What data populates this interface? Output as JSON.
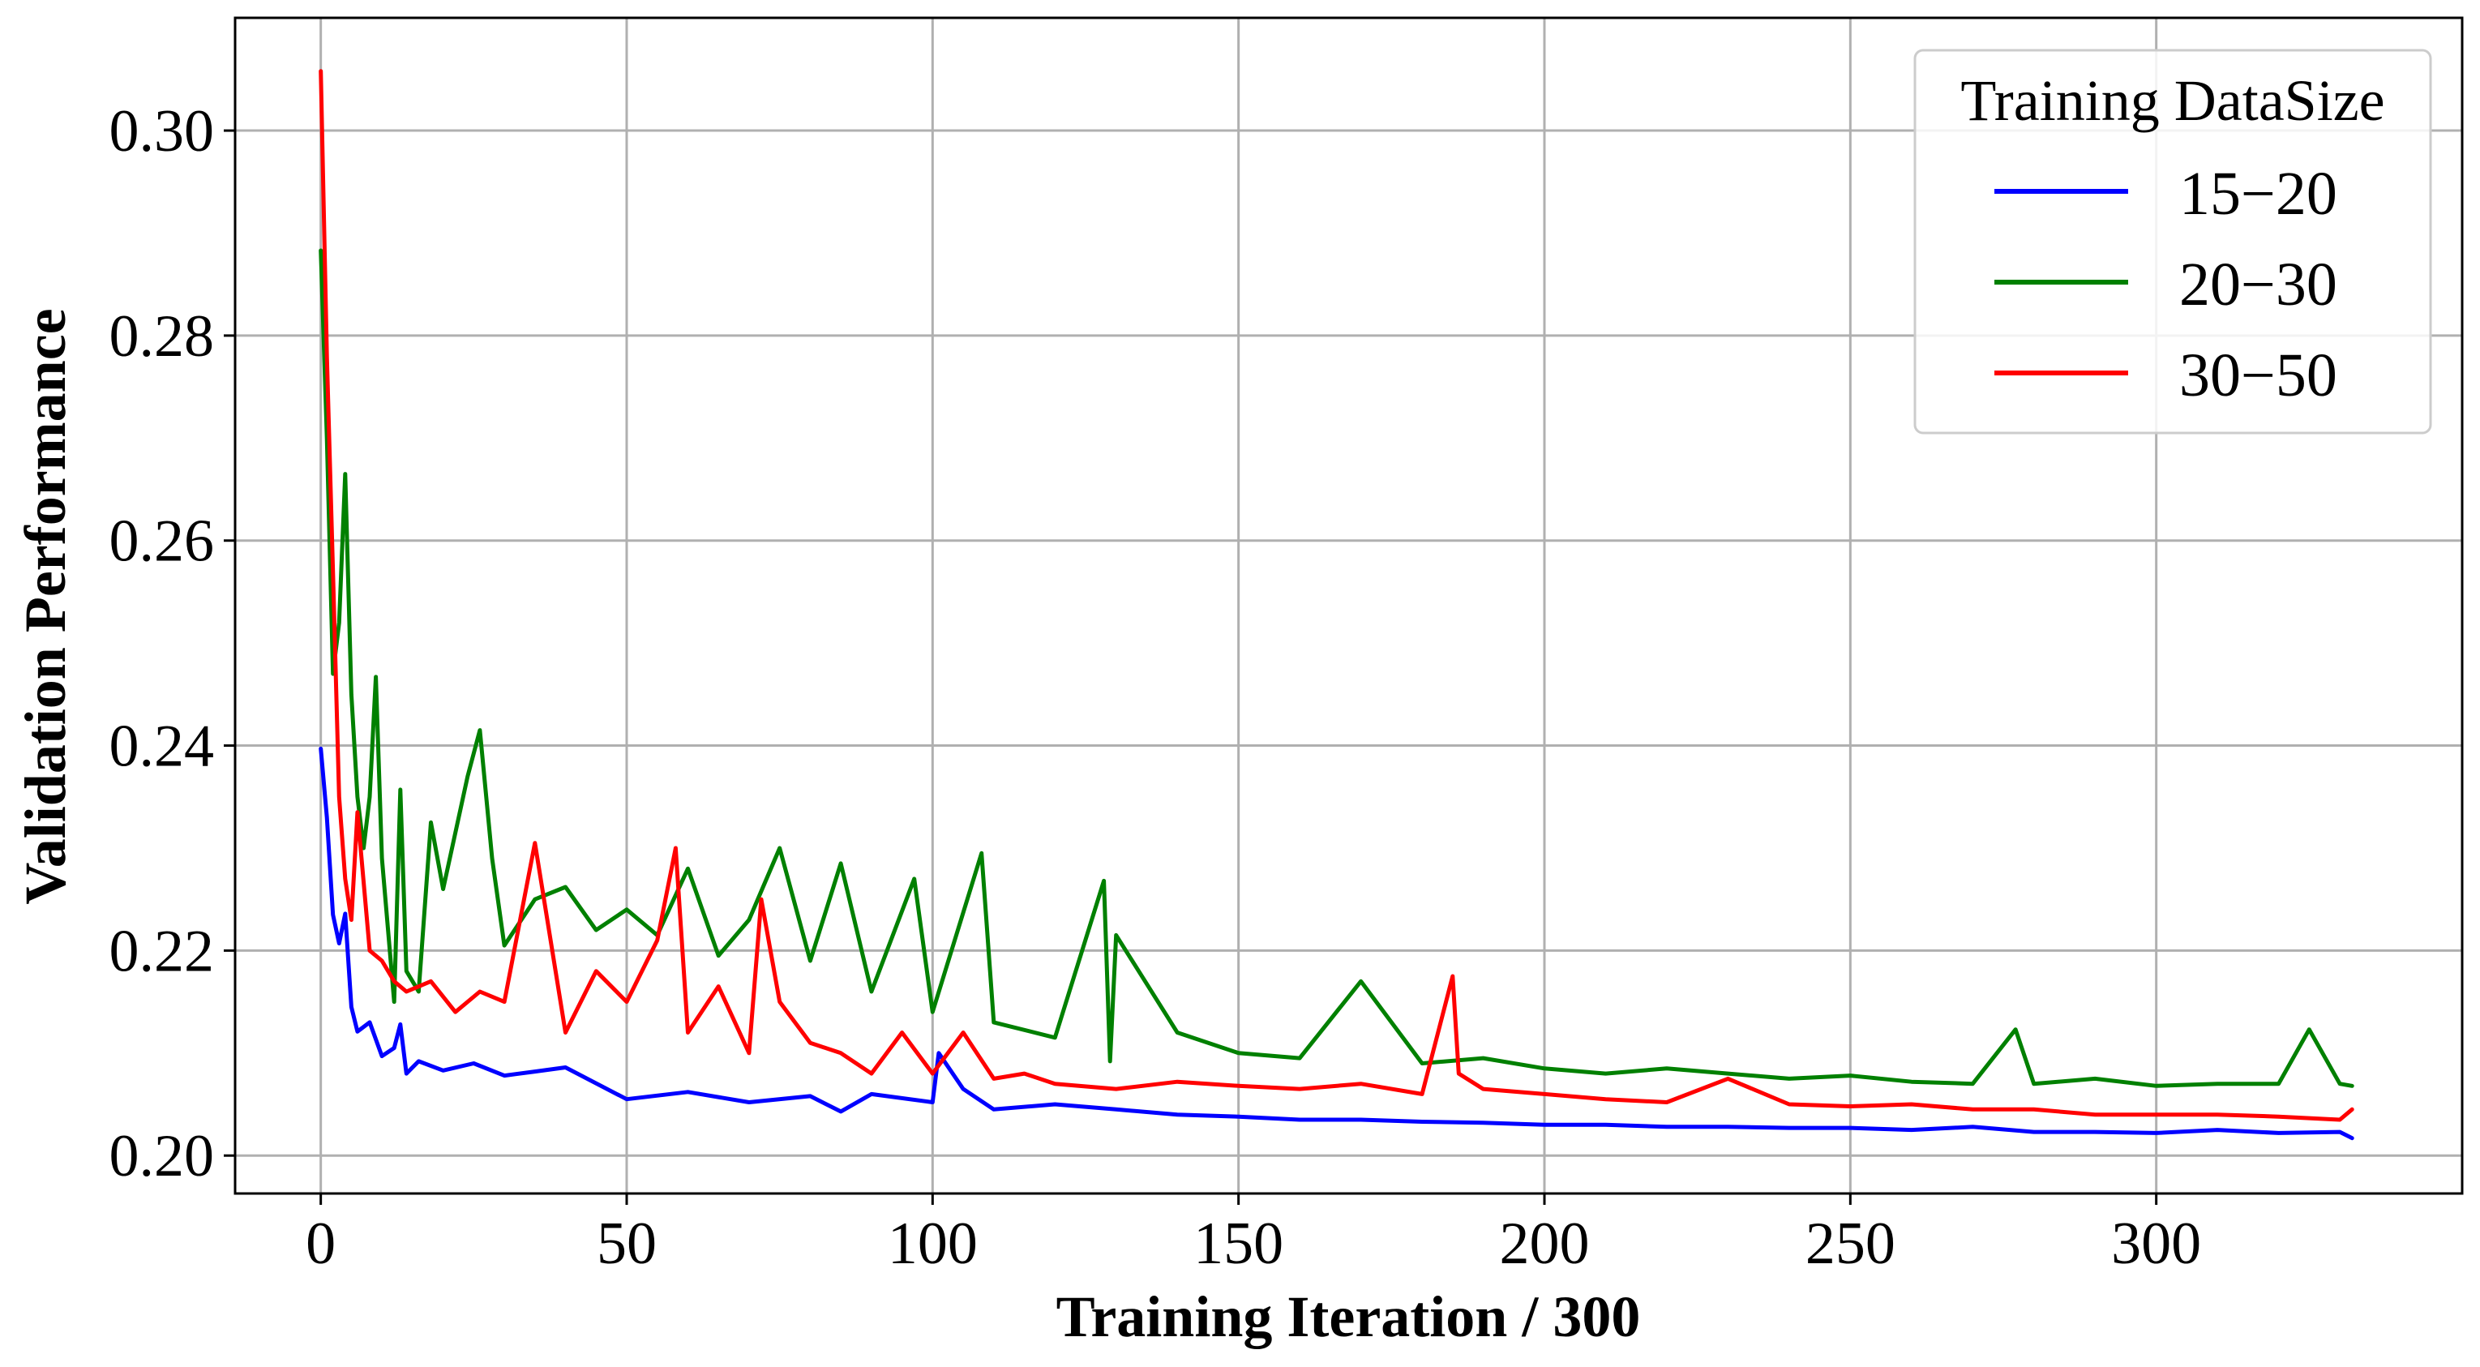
{
  "chart_data": {
    "type": "line",
    "title": "",
    "xlabel": "Training Iteration / 300",
    "ylabel": "Validation Performance",
    "xlim": [
      -14,
      350
    ],
    "ylim": [
      0.1963,
      0.311
    ],
    "xticks": [
      0,
      50,
      100,
      150,
      200,
      250,
      300
    ],
    "xtick_labels": [
      "0",
      "50",
      "100",
      "150",
      "200",
      "250",
      "300"
    ],
    "yticks": [
      0.2,
      0.22,
      0.24,
      0.26,
      0.28,
      0.3
    ],
    "ytick_labels": [
      "0.20",
      "0.22",
      "0.24",
      "0.26",
      "0.28",
      "0.30"
    ],
    "grid": true,
    "legend": {
      "title": "Training DataSize",
      "position": "top-right"
    },
    "series": [
      {
        "name": "15−20",
        "color": "#0000ff",
        "x": [
          0,
          1,
          2,
          3,
          4,
          5,
          6,
          8,
          10,
          12,
          13,
          14,
          16,
          20,
          25,
          30,
          35,
          40,
          50,
          60,
          70,
          80,
          85,
          90,
          100,
          101,
          105,
          110,
          120,
          130,
          140,
          150,
          160,
          170,
          180,
          190,
          200,
          210,
          220,
          230,
          240,
          250,
          260,
          270,
          280,
          290,
          300,
          310,
          320,
          330,
          332
        ],
        "y": [
          0.2397,
          0.233,
          0.2235,
          0.2207,
          0.2236,
          0.2145,
          0.2121,
          0.213,
          0.2097,
          0.2105,
          0.2128,
          0.208,
          0.2092,
          0.2083,
          0.209,
          0.2078,
          0.2082,
          0.2086,
          0.2055,
          0.2062,
          0.2052,
          0.2058,
          0.2043,
          0.206,
          0.2052,
          0.21,
          0.2065,
          0.2045,
          0.205,
          0.2045,
          0.204,
          0.2038,
          0.2035,
          0.2035,
          0.2033,
          0.2032,
          0.203,
          0.203,
          0.2028,
          0.2028,
          0.2027,
          0.2027,
          0.2025,
          0.2028,
          0.2023,
          0.2023,
          0.2022,
          0.2025,
          0.2022,
          0.2023,
          0.2017
        ]
      },
      {
        "name": "20−30",
        "color": "#008000",
        "x": [
          0,
          1,
          2,
          3,
          4,
          5,
          6,
          7,
          8,
          9,
          10,
          12,
          13,
          14,
          16,
          18,
          20,
          24,
          26,
          28,
          30,
          35,
          40,
          45,
          50,
          55,
          60,
          65,
          70,
          75,
          80,
          85,
          90,
          97,
          100,
          108,
          110,
          120,
          128,
          129,
          130,
          140,
          150,
          160,
          170,
          180,
          190,
          200,
          210,
          220,
          230,
          240,
          250,
          260,
          270,
          277,
          280,
          290,
          300,
          310,
          320,
          325,
          330,
          332
        ],
        "y": [
          0.2883,
          0.27,
          0.247,
          0.252,
          0.2665,
          0.245,
          0.235,
          0.23,
          0.235,
          0.2467,
          0.229,
          0.215,
          0.2357,
          0.218,
          0.216,
          0.2325,
          0.226,
          0.237,
          0.2415,
          0.229,
          0.2205,
          0.225,
          0.2262,
          0.222,
          0.224,
          0.2215,
          0.228,
          0.2195,
          0.223,
          0.23,
          0.219,
          0.2285,
          0.216,
          0.227,
          0.214,
          0.2295,
          0.213,
          0.2115,
          0.2268,
          0.2092,
          0.2215,
          0.212,
          0.21,
          0.2095,
          0.217,
          0.209,
          0.2095,
          0.2085,
          0.208,
          0.2085,
          0.208,
          0.2075,
          0.2078,
          0.2072,
          0.207,
          0.2123,
          0.207,
          0.2075,
          0.2068,
          0.207,
          0.207,
          0.2123,
          0.207,
          0.2068
        ]
      },
      {
        "name": "30−50",
        "color": "#ff0000",
        "x": [
          0,
          1,
          2,
          3,
          4,
          5,
          6,
          8,
          10,
          12,
          14,
          18,
          22,
          26,
          30,
          35,
          40,
          45,
          50,
          55,
          58,
          60,
          65,
          70,
          72,
          75,
          80,
          85,
          90,
          95,
          100,
          105,
          110,
          115,
          120,
          130,
          140,
          150,
          160,
          170,
          180,
          185,
          186,
          190,
          200,
          210,
          220,
          230,
          240,
          250,
          260,
          270,
          280,
          290,
          300,
          310,
          320,
          330,
          332
        ],
        "y": [
          0.3058,
          0.278,
          0.257,
          0.235,
          0.227,
          0.223,
          0.2335,
          0.22,
          0.219,
          0.217,
          0.216,
          0.217,
          0.214,
          0.216,
          0.215,
          0.2305,
          0.212,
          0.218,
          0.215,
          0.221,
          0.23,
          0.212,
          0.2165,
          0.21,
          0.225,
          0.215,
          0.211,
          0.21,
          0.208,
          0.212,
          0.208,
          0.212,
          0.2075,
          0.208,
          0.207,
          0.2065,
          0.2072,
          0.2068,
          0.2065,
          0.207,
          0.206,
          0.2175,
          0.208,
          0.2065,
          0.206,
          0.2055,
          0.2052,
          0.2075,
          0.205,
          0.2048,
          0.205,
          0.2045,
          0.2045,
          0.204,
          0.204,
          0.204,
          0.2038,
          0.2035,
          0.2045
        ]
      }
    ]
  }
}
